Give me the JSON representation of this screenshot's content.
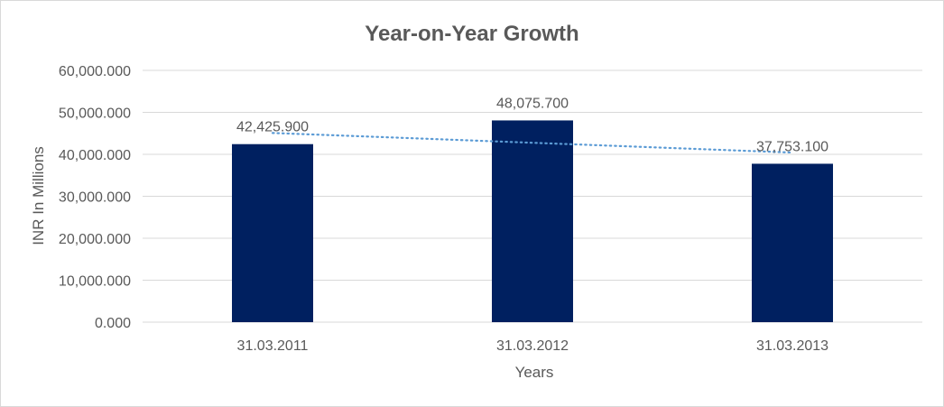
{
  "chart_data": {
    "type": "bar",
    "title": "Year-on-Year Growth",
    "xlabel": "Years",
    "ylabel": "INR In Millions",
    "categories": [
      "31.03.2011",
      "31.03.2012",
      "31.03.2013"
    ],
    "values": [
      42425.9,
      48075.7,
      37753.1
    ],
    "data_labels": [
      "42,425.900",
      "48,075.700",
      "37,753.100"
    ],
    "ylim": [
      0,
      60000
    ],
    "yticks": [
      0,
      10000,
      20000,
      30000,
      40000,
      50000,
      60000
    ],
    "ytick_labels": [
      "0.000",
      "10,000.000",
      "20,000.000",
      "30,000.000",
      "40,000.000",
      "50,000.000",
      "60,000.000"
    ],
    "grid": true,
    "legend": "none",
    "trendline": {
      "type": "linear",
      "style": "dotted",
      "color": "#5b9bd5"
    },
    "bar_color": "#002060",
    "grid_color": "#d9d9d9"
  }
}
